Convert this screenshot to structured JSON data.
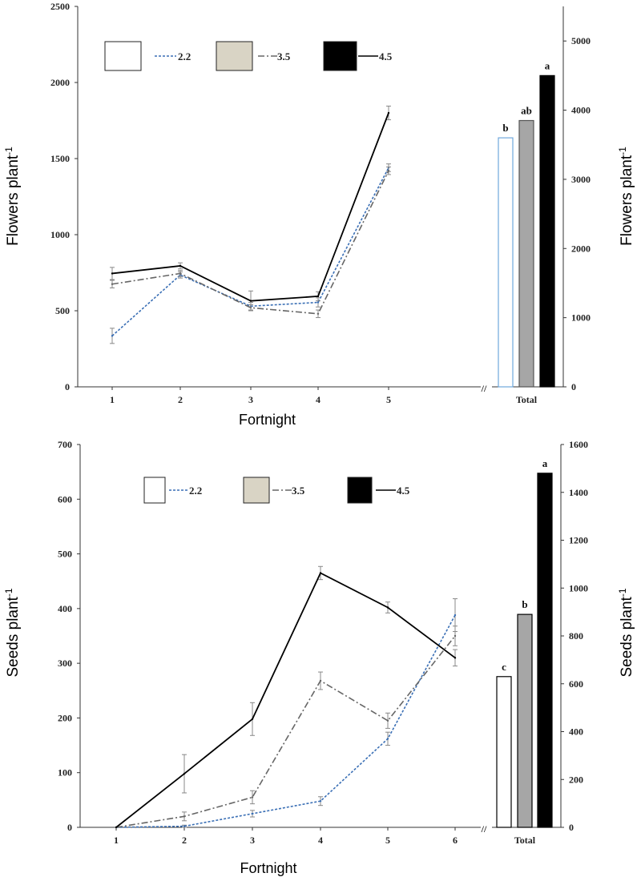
{
  "chart_data": [
    {
      "type": "line",
      "xlabel": "Fortnight",
      "ylabel": "Flowers plant",
      "ylabel_sup": "-1",
      "ylim": [
        0,
        2500
      ],
      "yticks": [
        "0",
        "500",
        "1000",
        "1500",
        "2000",
        "2500"
      ],
      "categories": [
        "1",
        "2",
        "3",
        "4",
        "5"
      ],
      "series": [
        {
          "name": "2.2",
          "values": [
            335,
            735,
            530,
            555,
            1440
          ],
          "errors": [
            50,
            20,
            25,
            30,
            25
          ],
          "color": "#3a6fb5"
        },
        {
          "name": "3.5",
          "values": [
            675,
            745,
            520,
            480,
            1420
          ],
          "errors": [
            25,
            20,
            20,
            25,
            25
          ],
          "color": "#666666"
        },
        {
          "name": "4.5",
          "values": [
            745,
            795,
            565,
            595,
            1800
          ],
          "errors": [
            40,
            20,
            65,
            30,
            45
          ],
          "color": "#000000"
        }
      ],
      "total": {
        "label": "Total",
        "ylabel": "Flowers plant",
        "ylabel_sup": "-1",
        "ylim": [
          0,
          5500
        ],
        "yticks": [
          "0",
          "1000",
          "2000",
          "3000",
          "4000",
          "5000"
        ],
        "values": [
          3600,
          3850,
          4500
        ],
        "letters": [
          "b",
          "ab",
          "a"
        ],
        "fills": [
          "#ffffff",
          "#a6a6a6",
          "#000000"
        ],
        "strokes": [
          "#6fa8dc",
          "#555555",
          "#000000"
        ]
      },
      "break_mark": "//",
      "legend": [
        {
          "label": "2.2",
          "swatch": "#ffffff",
          "line": "#3a6fb5"
        },
        {
          "label": "3.5",
          "swatch": "#d9d4c5",
          "line": "#666666"
        },
        {
          "label": "4.5",
          "swatch": "#000000",
          "line": "#000000"
        }
      ]
    },
    {
      "type": "line",
      "xlabel": "Fortnight",
      "ylabel": "Seeds plant",
      "ylabel_sup": "-1",
      "ylim": [
        0,
        700
      ],
      "yticks": [
        "0",
        "100",
        "200",
        "300",
        "400",
        "500",
        "600",
        "700"
      ],
      "categories": [
        "1",
        "2",
        "3",
        "4",
        "5",
        "6"
      ],
      "series": [
        {
          "name": "2.2",
          "values": [
            0,
            2,
            25,
            48,
            162,
            388
          ],
          "errors": [
            0,
            2,
            6,
            8,
            12,
            30
          ],
          "color": "#3a6fb5"
        },
        {
          "name": "3.5",
          "values": [
            0,
            20,
            55,
            268,
            195,
            350
          ],
          "errors": [
            0,
            8,
            12,
            16,
            14,
            18
          ],
          "color": "#666666"
        },
        {
          "name": "4.5",
          "values": [
            0,
            98,
            198,
            465,
            402,
            310
          ],
          "errors": [
            0,
            35,
            30,
            12,
            10,
            15
          ],
          "color": "#000000"
        }
      ],
      "total": {
        "label": "Total",
        "ylabel": "Seeds plant",
        "ylabel_sup": "-1",
        "ylim": [
          0,
          1600
        ],
        "yticks": [
          "0",
          "200",
          "400",
          "600",
          "800",
          "1000",
          "1200",
          "1400",
          "1600"
        ],
        "values": [
          630,
          890,
          1480
        ],
        "letters": [
          "c",
          "b",
          "a"
        ],
        "fills": [
          "#ffffff",
          "#a6a6a6",
          "#000000"
        ],
        "strokes": [
          "#000000",
          "#000000",
          "#000000"
        ]
      },
      "break_mark": "//",
      "legend": [
        {
          "label": "2.2",
          "swatch": "#ffffff",
          "line": "#3a6fb5"
        },
        {
          "label": "3.5",
          "swatch": "#d9d4c5",
          "line": "#666666"
        },
        {
          "label": "4.5",
          "swatch": "#000000",
          "line": "#000000"
        }
      ]
    }
  ]
}
